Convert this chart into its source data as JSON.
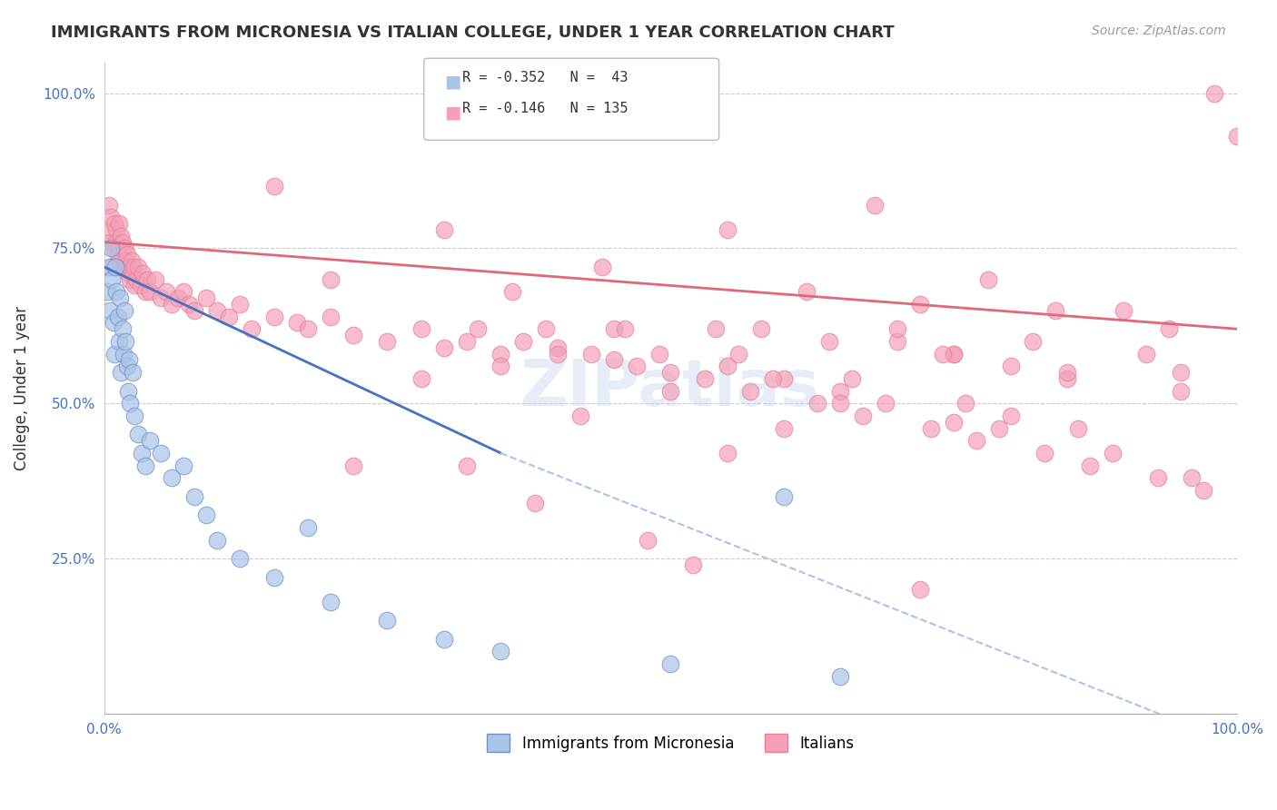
{
  "title": "IMMIGRANTS FROM MICRONESIA VS ITALIAN COLLEGE, UNDER 1 YEAR CORRELATION CHART",
  "source": "Source: ZipAtlas.com",
  "ylabel": "College, Under 1 year",
  "ytick_labels": [
    "100.0%",
    "75.0%",
    "50.0%",
    "25.0%"
  ],
  "ytick_values": [
    1.0,
    0.75,
    0.5,
    0.25
  ],
  "blue_scatter_color": "#aac4e8",
  "pink_scatter_color": "#f4a0b8",
  "blue_line_color": "#4472c4",
  "pink_line_color": "#e06878",
  "blue_dashed_color": "#aac4e8",
  "blue_scatter_x": [
    0.003,
    0.004,
    0.005,
    0.006,
    0.007,
    0.008,
    0.009,
    0.01,
    0.011,
    0.012,
    0.013,
    0.014,
    0.015,
    0.016,
    0.017,
    0.018,
    0.019,
    0.02,
    0.021,
    0.022,
    0.023,
    0.025,
    0.027,
    0.03,
    0.033,
    0.036,
    0.04,
    0.05,
    0.06,
    0.07,
    0.08,
    0.09,
    0.1,
    0.12,
    0.15,
    0.18,
    0.2,
    0.25,
    0.3,
    0.35,
    0.5,
    0.6,
    0.65
  ],
  "blue_scatter_y": [
    0.68,
    0.72,
    0.65,
    0.75,
    0.7,
    0.63,
    0.58,
    0.72,
    0.68,
    0.64,
    0.6,
    0.67,
    0.55,
    0.62,
    0.58,
    0.65,
    0.6,
    0.56,
    0.52,
    0.57,
    0.5,
    0.55,
    0.48,
    0.45,
    0.42,
    0.4,
    0.44,
    0.42,
    0.38,
    0.4,
    0.35,
    0.32,
    0.28,
    0.25,
    0.22,
    0.3,
    0.18,
    0.15,
    0.12,
    0.1,
    0.08,
    0.35,
    0.06
  ],
  "pink_scatter_x": [
    0.003,
    0.004,
    0.005,
    0.006,
    0.007,
    0.008,
    0.009,
    0.01,
    0.011,
    0.012,
    0.013,
    0.014,
    0.015,
    0.016,
    0.017,
    0.018,
    0.019,
    0.02,
    0.021,
    0.022,
    0.023,
    0.024,
    0.025,
    0.026,
    0.027,
    0.028,
    0.03,
    0.032,
    0.034,
    0.036,
    0.038,
    0.04,
    0.045,
    0.05,
    0.055,
    0.06,
    0.065,
    0.07,
    0.075,
    0.08,
    0.09,
    0.1,
    0.11,
    0.12,
    0.13,
    0.15,
    0.17,
    0.18,
    0.2,
    0.22,
    0.25,
    0.28,
    0.3,
    0.32,
    0.35,
    0.4,
    0.45,
    0.5,
    0.55,
    0.6,
    0.65,
    0.7,
    0.75,
    0.8,
    0.85,
    0.9,
    0.95,
    0.98,
    1.0,
    0.15,
    0.3,
    0.45,
    0.55,
    0.65,
    0.75,
    0.85,
    0.95,
    0.2,
    0.4,
    0.6,
    0.8,
    0.5,
    0.7,
    0.35,
    0.55,
    0.75,
    0.42,
    0.58,
    0.68,
    0.78,
    0.22,
    0.62,
    0.72,
    0.82,
    0.92,
    0.38,
    0.48,
    0.44,
    0.54,
    0.64,
    0.74,
    0.84,
    0.94,
    0.28,
    0.32,
    0.52,
    0.72,
    0.36,
    0.46,
    0.56,
    0.66,
    0.76,
    0.86,
    0.96,
    0.39,
    0.49,
    0.59,
    0.69,
    0.79,
    0.89,
    0.33,
    0.43,
    0.53,
    0.63,
    0.73,
    0.83,
    0.93,
    0.37,
    0.47,
    0.57,
    0.67,
    0.77,
    0.87,
    0.97
  ],
  "pink_scatter_y": [
    0.78,
    0.82,
    0.76,
    0.8,
    0.72,
    0.75,
    0.79,
    0.76,
    0.78,
    0.74,
    0.79,
    0.73,
    0.77,
    0.76,
    0.72,
    0.75,
    0.73,
    0.74,
    0.71,
    0.72,
    0.7,
    0.73,
    0.71,
    0.72,
    0.69,
    0.7,
    0.72,
    0.69,
    0.71,
    0.68,
    0.7,
    0.68,
    0.7,
    0.67,
    0.68,
    0.66,
    0.67,
    0.68,
    0.66,
    0.65,
    0.67,
    0.65,
    0.64,
    0.66,
    0.62,
    0.64,
    0.63,
    0.62,
    0.64,
    0.61,
    0.6,
    0.62,
    0.59,
    0.6,
    0.58,
    0.59,
    0.57,
    0.55,
    0.56,
    0.54,
    0.52,
    0.6,
    0.58,
    0.56,
    0.54,
    0.65,
    0.55,
    1.0,
    0.93,
    0.85,
    0.78,
    0.62,
    0.78,
    0.5,
    0.47,
    0.55,
    0.52,
    0.7,
    0.58,
    0.46,
    0.48,
    0.52,
    0.62,
    0.56,
    0.42,
    0.58,
    0.48,
    0.62,
    0.82,
    0.7,
    0.4,
    0.68,
    0.66,
    0.6,
    0.58,
    0.34,
    0.28,
    0.72,
    0.62,
    0.6,
    0.58,
    0.65,
    0.62,
    0.54,
    0.4,
    0.24,
    0.2,
    0.68,
    0.62,
    0.58,
    0.54,
    0.5,
    0.46,
    0.38,
    0.62,
    0.58,
    0.54,
    0.5,
    0.46,
    0.42,
    0.62,
    0.58,
    0.54,
    0.5,
    0.46,
    0.42,
    0.38,
    0.6,
    0.56,
    0.52,
    0.48,
    0.44,
    0.4,
    0.36
  ]
}
